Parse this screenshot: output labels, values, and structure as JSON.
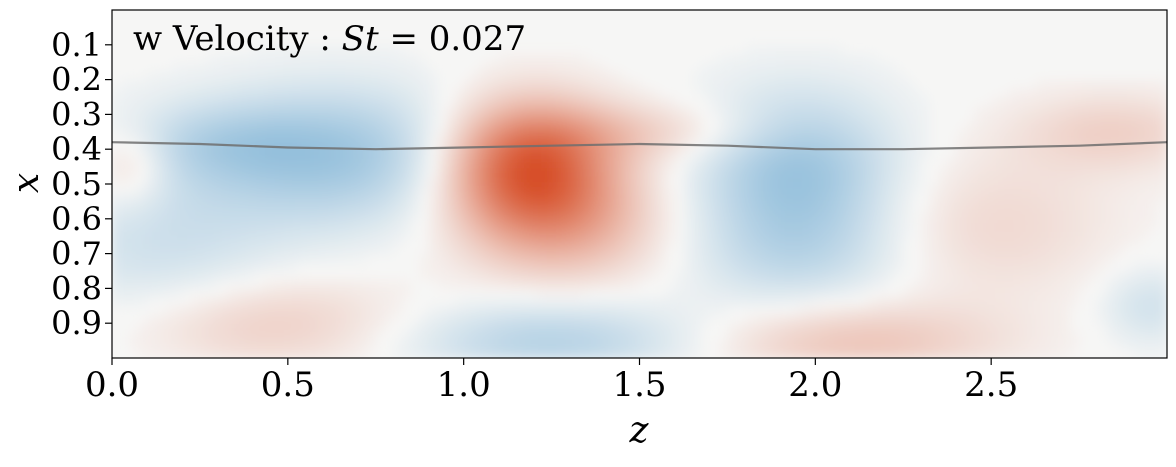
{
  "chart_data": {
    "type": "heatmap",
    "title_prefix": "w Velocity : ",
    "title_symbol": "St",
    "title_suffix": " = 0.027",
    "xlabel": "z",
    "ylabel": "x",
    "xlim": [
      0.0,
      3.0
    ],
    "ylim": [
      1.0,
      0.0
    ],
    "x_ticks": [
      0.0,
      0.5,
      1.0,
      1.5,
      2.0,
      2.5
    ],
    "x_tick_labels": [
      "0.0",
      "0.5",
      "1.0",
      "1.5",
      "2.0",
      "2.5"
    ],
    "y_ticks": [
      0.1,
      0.2,
      0.3,
      0.4,
      0.5,
      0.6,
      0.7,
      0.8,
      0.9
    ],
    "y_tick_labels": [
      "0.1",
      "0.2",
      "0.3",
      "0.4",
      "0.5",
      "0.6",
      "0.7",
      "0.8",
      "0.9"
    ],
    "colormap": "diverging blue-white-red",
    "colors": {
      "positive": "#d7502a",
      "negative": "#3d8fc6",
      "neutral": "#f6f6f5",
      "interface": "#6e6e6e"
    },
    "blobs": [
      {
        "z": 0.65,
        "x": 0.42,
        "sz": 0.28,
        "sx": 0.14,
        "w": -0.45
      },
      {
        "z": 0.3,
        "x": 0.38,
        "sz": 0.2,
        "sx": 0.08,
        "w": -0.2
      },
      {
        "z": 0.15,
        "x": 0.7,
        "sz": 0.25,
        "sx": 0.2,
        "w": -0.22
      },
      {
        "z": 1.18,
        "x": 0.45,
        "sz": 0.17,
        "sx": 0.13,
        "w": 0.95
      },
      {
        "z": 1.3,
        "x": 0.62,
        "sz": 0.2,
        "sx": 0.12,
        "w": 0.35
      },
      {
        "z": 1.55,
        "x": 0.35,
        "sz": 0.25,
        "sx": 0.06,
        "w": 0.2
      },
      {
        "z": 1.95,
        "x": 0.45,
        "sz": 0.2,
        "sx": 0.15,
        "w": -0.48
      },
      {
        "z": 1.95,
        "x": 0.7,
        "sz": 0.22,
        "sx": 0.12,
        "w": -0.25
      },
      {
        "z": 2.85,
        "x": 0.35,
        "sz": 0.2,
        "sx": 0.08,
        "w": 0.22
      },
      {
        "z": 2.5,
        "x": 0.62,
        "sz": 0.25,
        "sx": 0.15,
        "w": 0.18
      },
      {
        "z": 0.05,
        "x": 0.45,
        "sz": 0.08,
        "sx": 0.08,
        "w": 0.25
      },
      {
        "z": 0.4,
        "x": 0.9,
        "sz": 0.3,
        "sx": 0.1,
        "w": 0.28
      },
      {
        "z": 1.25,
        "x": 0.95,
        "sz": 0.3,
        "sx": 0.08,
        "w": -0.35
      },
      {
        "z": 2.1,
        "x": 0.95,
        "sz": 0.3,
        "sx": 0.08,
        "w": 0.3
      },
      {
        "z": 2.95,
        "x": 0.85,
        "sz": 0.1,
        "sx": 0.08,
        "w": -0.2
      }
    ],
    "interface_line": {
      "z": [
        0.0,
        0.25,
        0.5,
        0.75,
        1.0,
        1.25,
        1.5,
        1.75,
        2.0,
        2.25,
        2.5,
        2.75,
        3.0
      ],
      "x": [
        0.38,
        0.385,
        0.395,
        0.4,
        0.395,
        0.39,
        0.385,
        0.39,
        0.4,
        0.4,
        0.395,
        0.39,
        0.38
      ]
    }
  }
}
